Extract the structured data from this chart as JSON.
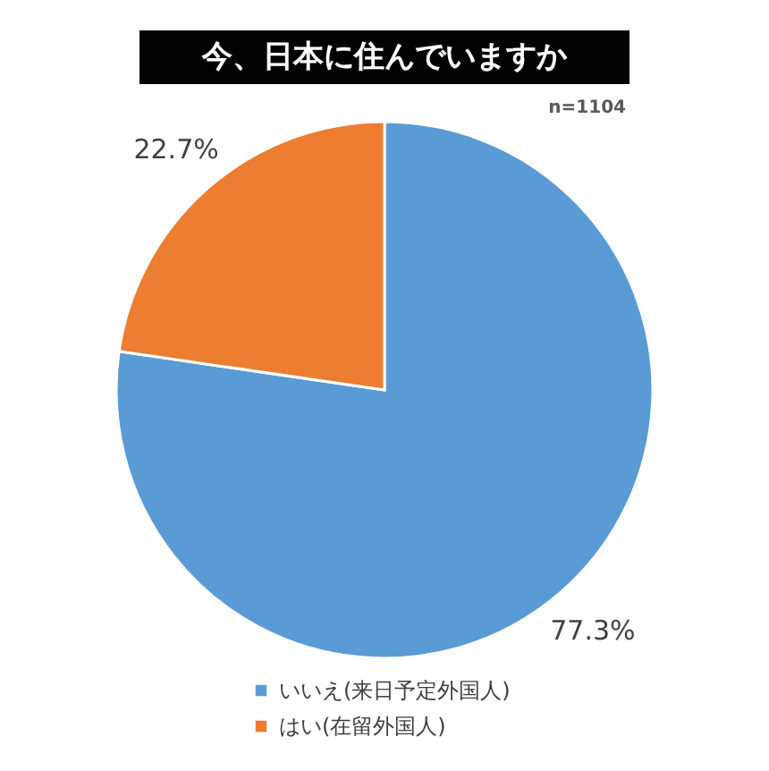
{
  "chart_data": {
    "type": "pie",
    "title": "今、日本に住んでいますか",
    "categories": [
      "いいえ(来日予定外国人)",
      "はい(在留外国人)"
    ],
    "values": [
      77.3,
      22.7
    ],
    "colors": [
      "#5b9bd5",
      "#ed7d31"
    ],
    "value_labels": [
      "77.3%",
      "22.7%"
    ],
    "legend": "bottom left",
    "annotations": [
      "n=1104"
    ]
  }
}
